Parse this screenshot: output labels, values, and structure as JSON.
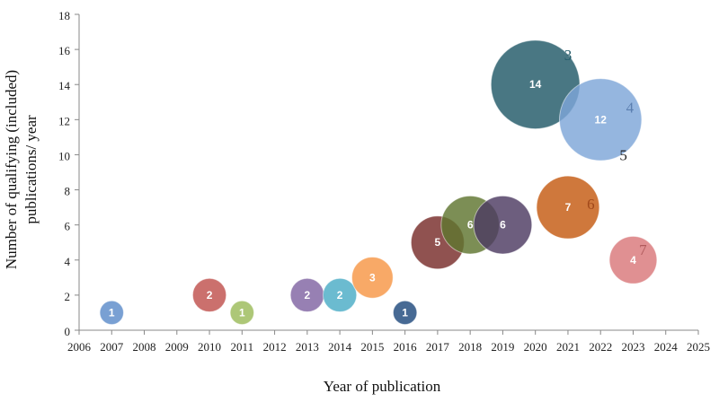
{
  "chart_data": {
    "type": "bubble",
    "title": "",
    "xlabel": "Year of publication",
    "ylabel_lines": [
      "Number of qualifying (included)",
      "publications/ year"
    ],
    "xlim": [
      2006,
      2025
    ],
    "ylim": [
      0,
      18
    ],
    "x_ticks": [
      "2006",
      "2007",
      "2008",
      "2009",
      "2010",
      "2011",
      "2012",
      "2013",
      "2014",
      "2015",
      "2016",
      "2017",
      "2018",
      "2019",
      "2020",
      "2021",
      "2022",
      "2023",
      "2024",
      "2025"
    ],
    "y_ticks": [
      "0",
      "2",
      "4",
      "6",
      "8",
      "10",
      "12",
      "14",
      "16",
      "18"
    ],
    "grid": false,
    "points": [
      {
        "x": 2007,
        "y": 1,
        "label": "1",
        "color": "#5B8BC9"
      },
      {
        "x": 2010,
        "y": 2,
        "label": "2",
        "color": "#C0504D"
      },
      {
        "x": 2011,
        "y": 1,
        "label": "1",
        "color": "#9BBB59"
      },
      {
        "x": 2013,
        "y": 2,
        "label": "2",
        "color": "#8064A2"
      },
      {
        "x": 2014,
        "y": 2,
        "label": "2",
        "color": "#4BACC6"
      },
      {
        "x": 2015,
        "y": 3,
        "label": "3",
        "color": "#F79646"
      },
      {
        "x": 2016,
        "y": 1,
        "label": "1",
        "color": "#1F497D"
      },
      {
        "x": 2017,
        "y": 5,
        "label": "5",
        "color": "#772C2A"
      },
      {
        "x": 2018,
        "y": 6,
        "label": "6",
        "color": "#5F7530"
      },
      {
        "x": 2019,
        "y": 6,
        "label": "6",
        "color": "#4D3B62"
      },
      {
        "x": 2020,
        "y": 14,
        "label": "14",
        "color": "#215968"
      },
      {
        "x": 2021,
        "y": 7,
        "label": "7",
        "color": "#C55A11"
      },
      {
        "x": 2022,
        "y": 12,
        "label": "12",
        "color": "#7EA6D8"
      },
      {
        "x": 2023,
        "y": 4,
        "label": "4",
        "color": "#D9777A"
      }
    ],
    "annotations": [
      {
        "text": "3",
        "x": 2021.0,
        "y": 15.7,
        "color": "#215968"
      },
      {
        "text": "4",
        "x": 2022.9,
        "y": 12.7,
        "color": "#5B7FB0"
      },
      {
        "text": "5",
        "x": 2022.7,
        "y": 10.0,
        "color": "#222222"
      },
      {
        "text": "6",
        "x": 2021.7,
        "y": 7.2,
        "color": "#A0481A"
      },
      {
        "text": "7",
        "x": 2023.3,
        "y": 4.6,
        "color": "#B05A5C"
      }
    ]
  }
}
